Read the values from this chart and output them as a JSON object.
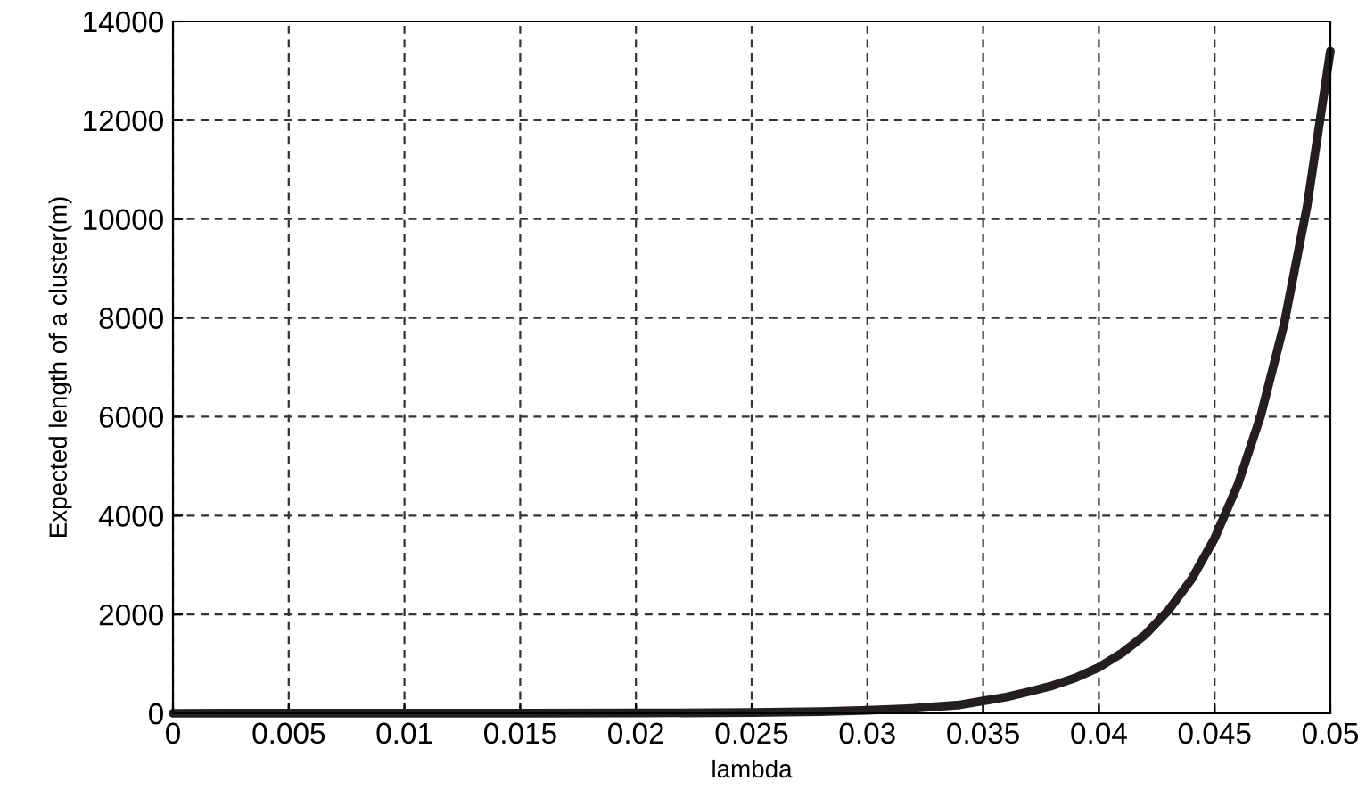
{
  "chart_data": {
    "type": "line",
    "xlabel": "lambda",
    "ylabel": "Expected length of a cluster(m)",
    "x": [
      0,
      0.005,
      0.01,
      0.015,
      0.02,
      0.025,
      0.028,
      0.03,
      0.032,
      0.034,
      0.035,
      0.036,
      0.037,
      0.038,
      0.039,
      0.04,
      0.041,
      0.042,
      0.043,
      0.044,
      0.045,
      0.046,
      0.047,
      0.048,
      0.049,
      0.05
    ],
    "series": [
      {
        "color": "#231f20",
        "values": [
          0,
          1,
          2,
          3,
          5,
          15,
          35,
          60,
          100,
          170,
          250,
          330,
          440,
          560,
          720,
          930,
          1220,
          1590,
          2080,
          2710,
          3540,
          4620,
          6030,
          7870,
          10270,
          13400
        ]
      }
    ],
    "xlim": [
      0,
      0.05
    ],
    "ylim": [
      0,
      14000
    ],
    "xticks": [
      0,
      0.005,
      0.01,
      0.015,
      0.02,
      0.025,
      0.03,
      0.035,
      0.04,
      0.045,
      0.05
    ],
    "yticks": [
      0,
      2000,
      4000,
      6000,
      8000,
      10000,
      12000,
      14000
    ],
    "grid": true,
    "line_style": "solid",
    "marker": "none"
  }
}
